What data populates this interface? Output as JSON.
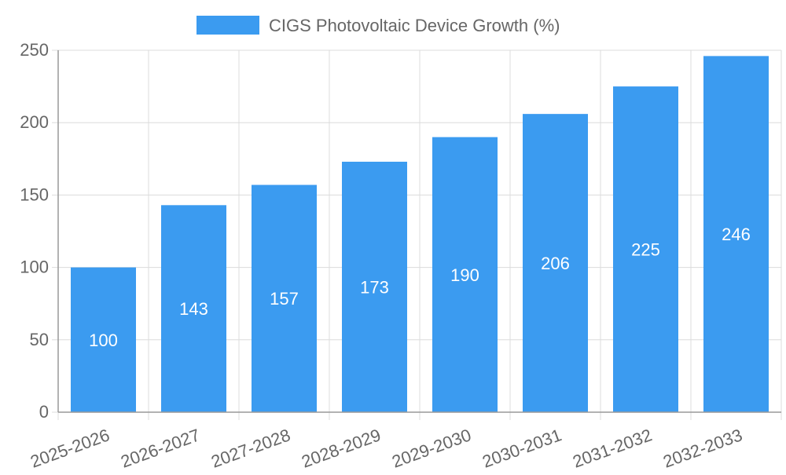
{
  "chart_data": {
    "type": "bar",
    "categories": [
      "2025-2026",
      "2026-2027",
      "2027-2028",
      "2028-2029",
      "2029-2030",
      "2030-2031",
      "2031-2032",
      "2032-2033"
    ],
    "series": [
      {
        "name": "CIGS Photovoltaic Device Growth (%)",
        "values": [
          100,
          143,
          157,
          173,
          190,
          206,
          225,
          246
        ],
        "color": "#3b9bf0"
      }
    ],
    "ylim": [
      0,
      250
    ],
    "yticks": [
      0,
      50,
      100,
      150,
      200,
      250
    ],
    "grid": true,
    "legend": "top-center",
    "data_label_color": "#ffffff",
    "grid_color": "#dcdcdc",
    "axis_color": "#999999",
    "text_color": "#666666"
  }
}
